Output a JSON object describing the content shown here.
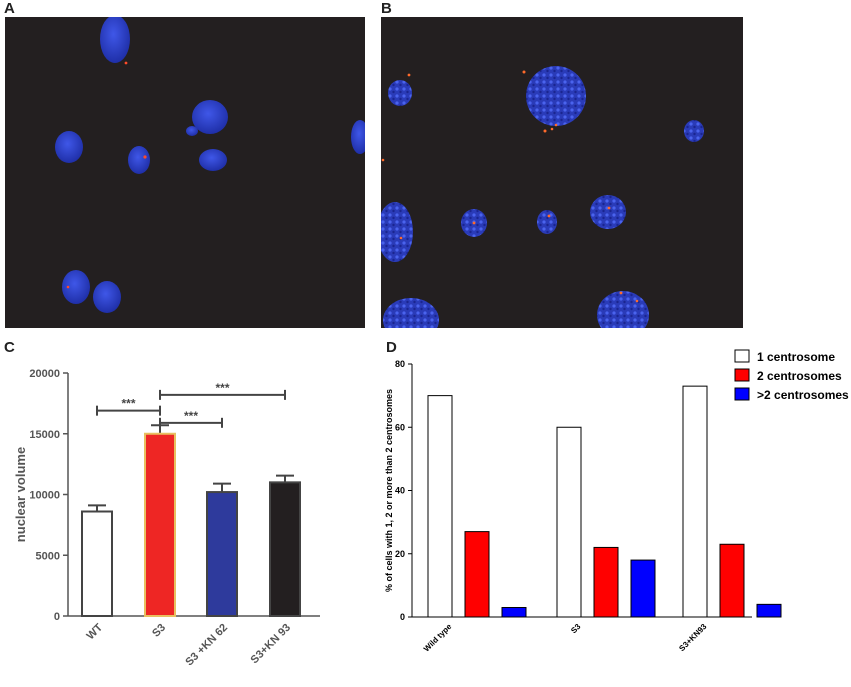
{
  "panels": {
    "a": {
      "label": "A"
    },
    "b": {
      "label": "B"
    },
    "c": {
      "label": "C"
    },
    "d": {
      "label": "D"
    }
  },
  "colors": {
    "micro_bg": "#231f20",
    "nucleus": "#2c3fc6",
    "centrosome": "#ff4a2a",
    "c_bars": [
      "#ffffff",
      "#ee2624",
      "#2e3a9c",
      "#231f20"
    ],
    "d_series": [
      "#ffffff",
      "#ff0000",
      "#0000ff"
    ]
  },
  "chart_data": [
    {
      "panel": "C",
      "type": "bar",
      "title": "",
      "xlabel": "",
      "ylabel": "nuclear volume",
      "categories": [
        "WT",
        "S3",
        "S3 +KN 62",
        "S3+KN 93"
      ],
      "values": [
        8600,
        15000,
        10200,
        11000
      ],
      "errors": [
        500,
        700,
        700,
        550
      ],
      "ylim": [
        0,
        20000
      ],
      "yticks": [
        "0",
        "5000",
        "10000",
        "15000",
        "20000"
      ],
      "significance": [
        {
          "from": 0,
          "to": 1,
          "label": "***",
          "y": 16900
        },
        {
          "from": 1,
          "to": 2,
          "label": "***",
          "y": 15900
        },
        {
          "from": 1,
          "to": 3,
          "label": "***",
          "y": 18200
        }
      ]
    },
    {
      "panel": "D",
      "type": "bar",
      "title": "",
      "xlabel": "",
      "ylabel": "% of cells with 1, 2 or more than 2 centrosomes",
      "categories": [
        "Wild type",
        "S3",
        "S3+KN93"
      ],
      "series": [
        {
          "name": "1 centrosome",
          "values": [
            70,
            60,
            73
          ]
        },
        {
          "name": "2 centrosomes",
          "values": [
            27,
            22,
            23
          ]
        },
        {
          "name": ">2 centrosomes",
          "values": [
            3,
            18,
            4
          ]
        }
      ],
      "ylim": [
        0,
        80
      ],
      "yticks": [
        "0",
        "20",
        "40",
        "60",
        "80"
      ],
      "legend": "top-right"
    }
  ]
}
